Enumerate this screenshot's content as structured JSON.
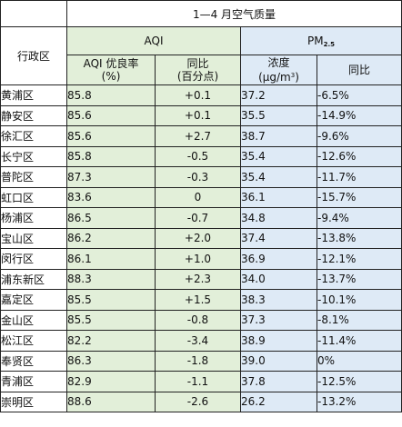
{
  "table": {
    "title": "1—4 月空气质量",
    "region_header": "行政区",
    "aqi_group": "AQI",
    "pm_group": "PM",
    "pm_group_sub": "2.5",
    "aqi_rate_header": [
      "AQI 优良率",
      "(%)"
    ],
    "aqi_yoy_header": [
      "同比",
      "(百分点)"
    ],
    "pm_conc_header": [
      "浓度",
      "(μg/m",
      "3",
      ")"
    ],
    "pm_yoy_header": "同比",
    "rows": [
      {
        "region": "黄浦区",
        "aqi_rate": "85.8",
        "aqi_yoy": "+0.1",
        "pm_conc": "37.2",
        "pm_yoy": "-6.5%"
      },
      {
        "region": "静安区",
        "aqi_rate": "85.6",
        "aqi_yoy": "+0.1",
        "pm_conc": "35.5",
        "pm_yoy": "-14.9%"
      },
      {
        "region": "徐汇区",
        "aqi_rate": "85.6",
        "aqi_yoy": "+2.7",
        "pm_conc": "38.7",
        "pm_yoy": "-9.6%"
      },
      {
        "region": "长宁区",
        "aqi_rate": "85.8",
        "aqi_yoy": "-0.5",
        "pm_conc": "35.4",
        "pm_yoy": "-12.6%"
      },
      {
        "region": "普陀区",
        "aqi_rate": "87.3",
        "aqi_yoy": "-0.3",
        "pm_conc": "35.4",
        "pm_yoy": "-11.7%"
      },
      {
        "region": "虹口区",
        "aqi_rate": "83.6",
        "aqi_yoy": "0",
        "pm_conc": "36.1",
        "pm_yoy": "-15.7%"
      },
      {
        "region": "杨浦区",
        "aqi_rate": "86.5",
        "aqi_yoy": "-0.7",
        "pm_conc": "34.8",
        "pm_yoy": "-9.4%"
      },
      {
        "region": "宝山区",
        "aqi_rate": "86.2",
        "aqi_yoy": "+2.0",
        "pm_conc": "37.4",
        "pm_yoy": "-13.8%"
      },
      {
        "region": "闵行区",
        "aqi_rate": "86.1",
        "aqi_yoy": "+1.0",
        "pm_conc": "36.9",
        "pm_yoy": "-12.1%"
      },
      {
        "region": "浦东新区",
        "aqi_rate": "88.3",
        "aqi_yoy": "+2.3",
        "pm_conc": "34.0",
        "pm_yoy": "-13.7%"
      },
      {
        "region": "嘉定区",
        "aqi_rate": "85.5",
        "aqi_yoy": "+1.5",
        "pm_conc": "38.3",
        "pm_yoy": "-10.1%"
      },
      {
        "region": "金山区",
        "aqi_rate": "85.5",
        "aqi_yoy": "-0.8",
        "pm_conc": "37.3",
        "pm_yoy": "-8.1%"
      },
      {
        "region": "松江区",
        "aqi_rate": "82.2",
        "aqi_yoy": "-3.4",
        "pm_conc": "38.9",
        "pm_yoy": "-11.4%"
      },
      {
        "region": "奉贤区",
        "aqi_rate": "86.3",
        "aqi_yoy": "-1.8",
        "pm_conc": "39.0",
        "pm_yoy": "0%"
      },
      {
        "region": "青浦区",
        "aqi_rate": "82.9",
        "aqi_yoy": "-1.1",
        "pm_conc": "37.8",
        "pm_yoy": "-12.5%"
      },
      {
        "region": "崇明区",
        "aqi_rate": "88.6",
        "aqi_yoy": "-2.6",
        "pm_conc": "26.2",
        "pm_yoy": "-13.2%"
      }
    ]
  },
  "colors": {
    "aqi_fill": "#e2efd9",
    "pm_fill": "#deeaf6",
    "border": "#222222"
  }
}
